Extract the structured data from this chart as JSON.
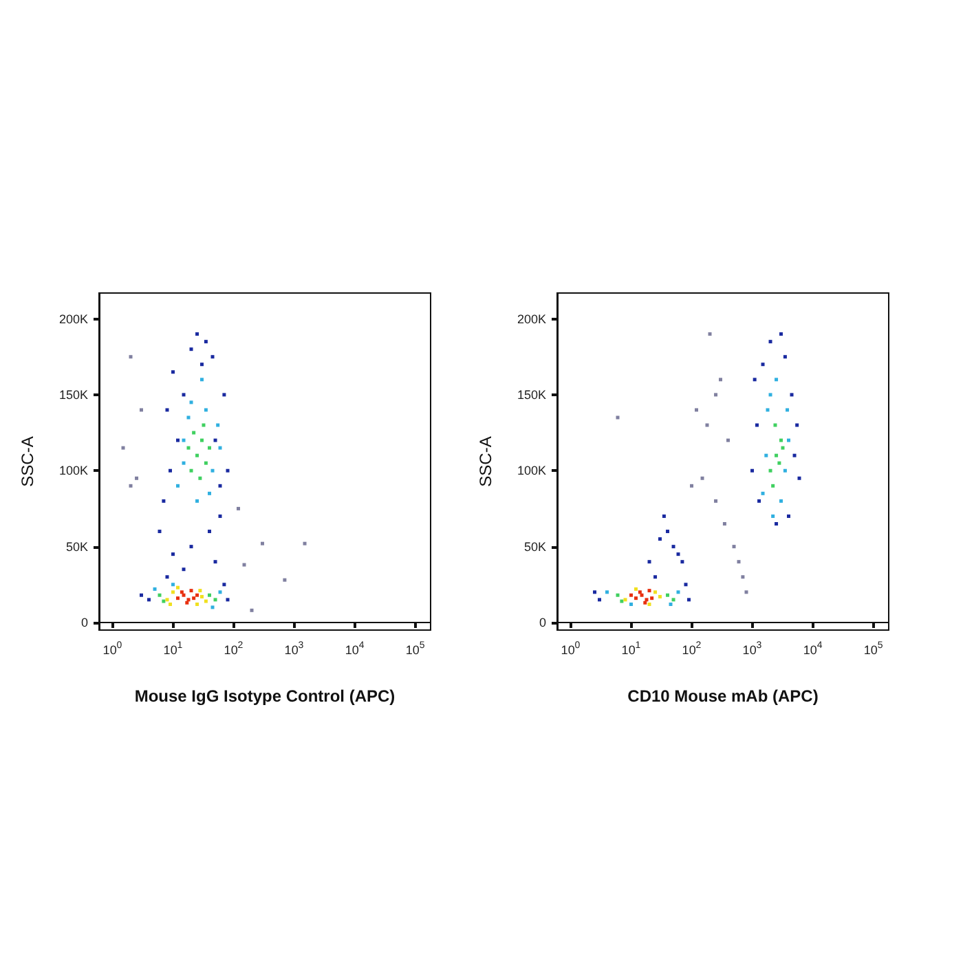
{
  "chart_data": [
    {
      "type": "scatter",
      "xlabel": "Mouse IgG Isotype Control (APC)",
      "ylabel": "SSC-A",
      "log": "x",
      "marker": "square",
      "xlim": [
        0.6,
        180000
      ],
      "ylim": [
        -5000,
        217000
      ],
      "xticks": [
        {
          "value": 1,
          "label": "10$^{0}$"
        },
        {
          "value": 10,
          "label": "10$^{1}$"
        },
        {
          "value": 100,
          "label": "10$^{2}$"
        },
        {
          "value": 1000,
          "label": "10$^{3}$"
        },
        {
          "value": 10000,
          "label": "10$^{4}$"
        },
        {
          "value": 100000,
          "label": "10$^{5}$"
        }
      ],
      "yticks": [
        0,
        {
          "value": 50000,
          "label": "50K"
        },
        {
          "value": 100000,
          "label": "100K"
        },
        {
          "value": 150000,
          "label": "150K"
        },
        {
          "value": 200000,
          "label": "200K"
        }
      ],
      "series": [
        {
          "color": "#8080a0",
          "x": [
            1.5,
            2,
            2.5,
            200,
            300,
            700,
            1500,
            150,
            120,
            2,
            3
          ],
          "values": [
            115000,
            175000,
            95000,
            8000,
            52000,
            28000,
            52000,
            38000,
            75000,
            90000,
            140000
          ]
        },
        {
          "color": "#1a2aa0",
          "x": [
            4,
            70,
            80,
            3,
            8,
            10,
            6,
            7,
            9,
            12,
            15,
            70,
            80,
            60,
            50,
            45,
            20,
            25,
            30,
            35,
            40,
            20,
            15,
            10,
            50,
            60,
            8
          ],
          "values": [
            15000,
            25000,
            15000,
            18000,
            30000,
            45000,
            60000,
            80000,
            100000,
            120000,
            150000,
            150000,
            100000,
            70000,
            40000,
            175000,
            180000,
            190000,
            170000,
            185000,
            60000,
            50000,
            35000,
            165000,
            120000,
            90000,
            140000
          ]
        },
        {
          "color": "#30b0e0",
          "x": [
            5,
            60,
            45,
            10,
            12,
            15,
            45,
            55,
            20,
            25,
            35,
            15,
            60,
            40,
            18,
            30
          ],
          "values": [
            22000,
            20000,
            10000,
            25000,
            90000,
            120000,
            100000,
            130000,
            145000,
            80000,
            140000,
            105000,
            115000,
            85000,
            135000,
            160000
          ]
        },
        {
          "color": "#40d060",
          "x": [
            6,
            40,
            7,
            50,
            20,
            25,
            30,
            35,
            18,
            22,
            28,
            40,
            32
          ],
          "values": [
            18000,
            18000,
            14000,
            15000,
            100000,
            110000,
            120000,
            105000,
            115000,
            125000,
            95000,
            115000,
            130000
          ]
        },
        {
          "color": "#f0e020",
          "x": [
            8,
            10,
            30,
            35,
            28,
            9,
            12,
            25
          ],
          "values": [
            15000,
            20000,
            17000,
            14000,
            21000,
            12000,
            23000,
            12000
          ]
        },
        {
          "color": "#e83010",
          "x": [
            12,
            15,
            18,
            20,
            14,
            22,
            17,
            25
          ],
          "values": [
            16000,
            18000,
            15000,
            21000,
            20000,
            16000,
            13000,
            18000
          ]
        }
      ]
    },
    {
      "type": "scatter",
      "xlabel": "CD10 Mouse mAb (APC)",
      "ylabel": "SSC-A",
      "log": "x",
      "marker": "square",
      "xlim": [
        0.6,
        180000
      ],
      "ylim": [
        -5000,
        217000
      ],
      "xticks": [
        {
          "value": 1,
          "label": "10$^{0}$"
        },
        {
          "value": 10,
          "label": "10$^{1}$"
        },
        {
          "value": 100,
          "label": "10$^{2}$"
        },
        {
          "value": 1000,
          "label": "10$^{3}$"
        },
        {
          "value": 10000,
          "label": "10$^{4}$"
        },
        {
          "value": 100000,
          "label": "10$^{5}$"
        }
      ],
      "yticks": [
        0,
        {
          "value": 50000,
          "label": "50K"
        },
        {
          "value": 100000,
          "label": "100K"
        },
        {
          "value": 150000,
          "label": "150K"
        },
        {
          "value": 200000,
          "label": "200K"
        }
      ],
      "series": [
        {
          "color": "#8080a0",
          "x": [
            6,
            200,
            250,
            300,
            180,
            400,
            150,
            500,
            700,
            800,
            350,
            250,
            100,
            120,
            600
          ],
          "values": [
            135000,
            190000,
            150000,
            160000,
            130000,
            120000,
            95000,
            50000,
            30000,
            20000,
            65000,
            80000,
            90000,
            140000,
            40000
          ]
        },
        {
          "color": "#1a2aa0",
          "x": [
            3,
            2.5,
            80,
            90,
            20,
            30,
            40,
            50,
            60,
            25,
            35,
            70,
            1000,
            1200,
            1300,
            5000,
            6000,
            4500,
            1500,
            2000,
            3000,
            3500,
            2500,
            4000,
            1100,
            5500
          ],
          "values": [
            15000,
            20000,
            25000,
            15000,
            40000,
            55000,
            60000,
            50000,
            45000,
            30000,
            70000,
            40000,
            100000,
            130000,
            80000,
            110000,
            95000,
            150000,
            170000,
            185000,
            190000,
            175000,
            65000,
            70000,
            160000,
            130000
          ]
        },
        {
          "color": "#30b0e0",
          "x": [
            4,
            60,
            10,
            45,
            1500,
            1800,
            3500,
            4000,
            2000,
            3000,
            2500,
            1700,
            2200,
            3800
          ],
          "values": [
            20000,
            20000,
            12000,
            12000,
            85000,
            140000,
            100000,
            120000,
            150000,
            80000,
            160000,
            110000,
            70000,
            140000
          ]
        },
        {
          "color": "#40d060",
          "x": [
            6,
            40,
            7,
            50,
            2000,
            2500,
            3000,
            2200,
            2800,
            2400,
            3200
          ],
          "values": [
            18000,
            18000,
            14000,
            15000,
            100000,
            110000,
            120000,
            90000,
            105000,
            130000,
            115000
          ]
        },
        {
          "color": "#f0e020",
          "x": [
            8,
            25,
            30,
            12,
            20
          ],
          "values": [
            15000,
            20000,
            17000,
            22000,
            12000
          ]
        },
        {
          "color": "#e83010",
          "x": [
            12,
            15,
            18,
            20,
            14,
            22,
            17,
            10
          ],
          "values": [
            16000,
            18000,
            15000,
            21000,
            20000,
            16000,
            13000,
            18000
          ]
        }
      ]
    }
  ]
}
